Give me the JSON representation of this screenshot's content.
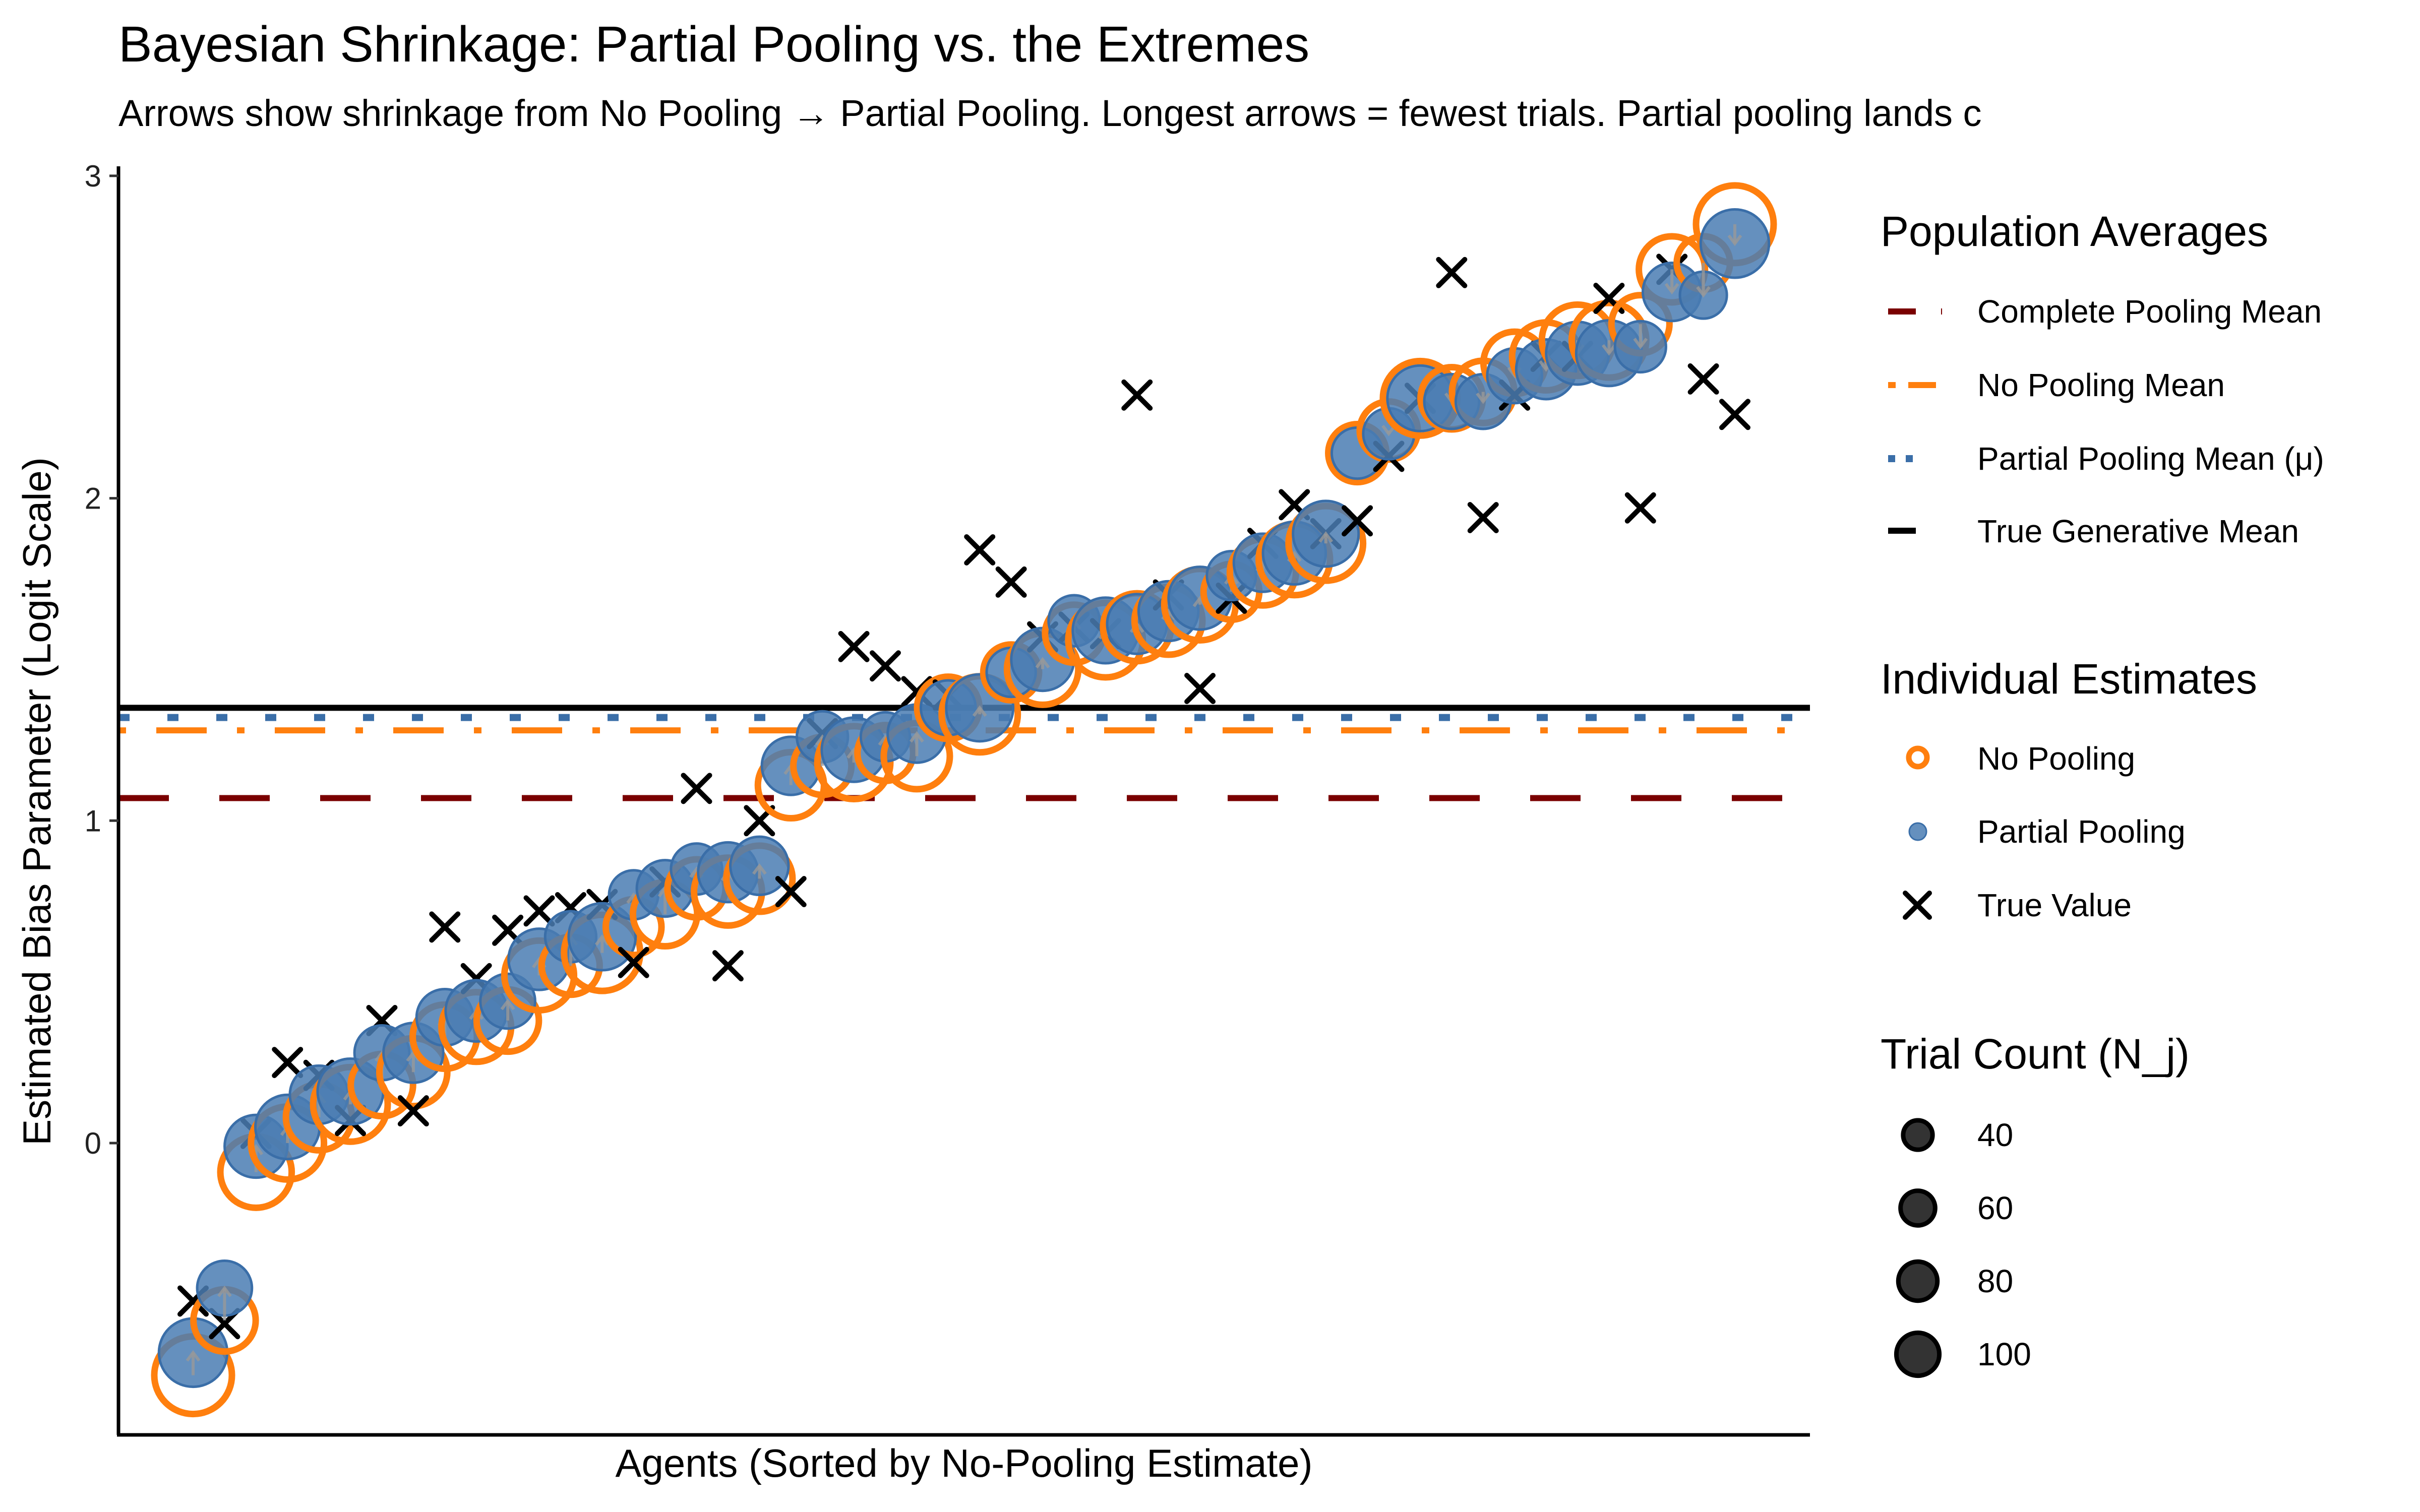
{
  "chart_data": {
    "type": "scatter",
    "title": "Bayesian Shrinkage: Partial Pooling vs. the Extremes",
    "subtitle": "Arrows show shrinkage from No Pooling → Partial Pooling. Longest arrows = fewest trials. Partial pooling lands c",
    "xlabel": "Agents (Sorted by No-Pooling Estimate)",
    "ylabel": "Estimated Bias Parameter (Logit Scale)",
    "ylim": [
      -0.9,
      3.0
    ],
    "yticks": [
      0,
      1,
      2,
      3
    ],
    "ytick_labels": [
      "0",
      "1",
      "2",
      "3"
    ],
    "xticks": [],
    "grid": false,
    "colors": {
      "no_pooling": "#FF7F0E",
      "partial_pooling": "#4A7DB3",
      "true_value": "#000000",
      "complete_pooling_mean": "#7A0000",
      "no_pooling_mean": "#FF7F0E",
      "partial_pooling_mean": "#3A6EA8",
      "true_generative_mean": "#000000",
      "arrow": "#999999"
    },
    "reference_lines": [
      {
        "name": "Complete Pooling Mean",
        "y": 1.07,
        "style": "dashed"
      },
      {
        "name": "No Pooling Mean",
        "y": 1.28,
        "style": "dotdash"
      },
      {
        "name": "Partial Pooling Mean (μ)",
        "y": 1.32,
        "style": "dotted"
      },
      {
        "name": "True Generative Mean",
        "y": 1.35,
        "style": "solid"
      }
    ],
    "agents": [
      {
        "rank": 1,
        "no_pooling": -0.72,
        "partial_pooling": -0.65,
        "true_value": -0.49,
        "n_trials": 100
      },
      {
        "rank": 2,
        "no_pooling": -0.55,
        "partial_pooling": -0.45,
        "true_value": -0.56,
        "n_trials": 55
      },
      {
        "rank": 3,
        "no_pooling": -0.09,
        "partial_pooling": -0.01,
        "true_value": 0.03,
        "n_trials": 80
      },
      {
        "rank": 4,
        "no_pooling": 0.0,
        "partial_pooling": 0.05,
        "true_value": 0.25,
        "n_trials": 85
      },
      {
        "rank": 5,
        "no_pooling": 0.08,
        "partial_pooling": 0.15,
        "true_value": 0.21,
        "n_trials": 65
      },
      {
        "rank": 6,
        "no_pooling": 0.12,
        "partial_pooling": 0.16,
        "true_value": 0.07,
        "n_trials": 90
      },
      {
        "rank": 7,
        "no_pooling": 0.18,
        "partial_pooling": 0.28,
        "true_value": 0.38,
        "n_trials": 55
      },
      {
        "rank": 8,
        "no_pooling": 0.22,
        "partial_pooling": 0.28,
        "true_value": 0.1,
        "n_trials": 70
      },
      {
        "rank": 9,
        "no_pooling": 0.33,
        "partial_pooling": 0.39,
        "true_value": 0.67,
        "n_trials": 60
      },
      {
        "rank": 10,
        "no_pooling": 0.36,
        "partial_pooling": 0.41,
        "true_value": 0.51,
        "n_trials": 75
      },
      {
        "rank": 11,
        "no_pooling": 0.38,
        "partial_pooling": 0.44,
        "true_value": 0.66,
        "n_trials": 55
      },
      {
        "rank": 12,
        "no_pooling": 0.52,
        "partial_pooling": 0.57,
        "true_value": 0.72,
        "n_trials": 75
      },
      {
        "rank": 13,
        "no_pooling": 0.55,
        "partial_pooling": 0.64,
        "true_value": 0.73,
        "n_trials": 45
      },
      {
        "rank": 14,
        "no_pooling": 0.59,
        "partial_pooling": 0.64,
        "true_value": 0.74,
        "n_trials": 95
      },
      {
        "rank": 15,
        "no_pooling": 0.67,
        "partial_pooling": 0.77,
        "true_value": 0.56,
        "n_trials": 40
      },
      {
        "rank": 16,
        "no_pooling": 0.71,
        "partial_pooling": 0.79,
        "true_value": 0.81,
        "n_trials": 60
      },
      {
        "rank": 17,
        "no_pooling": 0.79,
        "partial_pooling": 0.85,
        "true_value": 1.1,
        "n_trials": 45
      },
      {
        "rank": 18,
        "no_pooling": 0.78,
        "partial_pooling": 0.84,
        "true_value": 0.55,
        "n_trials": 70
      },
      {
        "rank": 19,
        "no_pooling": 0.82,
        "partial_pooling": 0.86,
        "true_value": 1.0,
        "n_trials": 65
      },
      {
        "rank": 20,
        "no_pooling": 1.11,
        "partial_pooling": 1.17,
        "true_value": 0.78,
        "n_trials": 65
      },
      {
        "rank": 21,
        "no_pooling": 1.17,
        "partial_pooling": 1.26,
        "true_value": 1.27,
        "n_trials": 45
      },
      {
        "rank": 22,
        "no_pooling": 1.18,
        "partial_pooling": 1.22,
        "true_value": 1.54,
        "n_trials": 85
      },
      {
        "rank": 23,
        "no_pooling": 1.21,
        "partial_pooling": 1.26,
        "true_value": 1.48,
        "n_trials": 40
      },
      {
        "rank": 24,
        "no_pooling": 1.2,
        "partial_pooling": 1.27,
        "true_value": 1.4,
        "n_trials": 65
      },
      {
        "rank": 25,
        "no_pooling": 1.35,
        "partial_pooling": 1.35,
        "true_value": 1.39,
        "n_trials": 55
      },
      {
        "rank": 26,
        "no_pooling": 1.33,
        "partial_pooling": 1.35,
        "true_value": 1.84,
        "n_trials": 95
      },
      {
        "rank": 27,
        "no_pooling": 1.46,
        "partial_pooling": 1.46,
        "true_value": 1.74,
        "n_trials": 40
      },
      {
        "rank": 28,
        "no_pooling": 1.47,
        "partial_pooling": 1.5,
        "true_value": 1.57,
        "n_trials": 80
      },
      {
        "rank": 29,
        "no_pooling": 1.58,
        "partial_pooling": 1.62,
        "true_value": 1.6,
        "n_trials": 45
      },
      {
        "rank": 30,
        "no_pooling": 1.56,
        "partial_pooling": 1.59,
        "true_value": 1.58,
        "n_trials": 90
      },
      {
        "rank": 31,
        "no_pooling": 1.6,
        "partial_pooling": 1.61,
        "true_value": 2.32,
        "n_trials": 70
      },
      {
        "rank": 32,
        "no_pooling": 1.62,
        "partial_pooling": 1.65,
        "true_value": 1.7,
        "n_trials": 70
      },
      {
        "rank": 33,
        "no_pooling": 1.67,
        "partial_pooling": 1.69,
        "true_value": 1.41,
        "n_trials": 80
      },
      {
        "rank": 34,
        "no_pooling": 1.71,
        "partial_pooling": 1.76,
        "true_value": 1.69,
        "n_trials": 40
      },
      {
        "rank": 35,
        "no_pooling": 1.77,
        "partial_pooling": 1.8,
        "true_value": 1.86,
        "n_trials": 65
      },
      {
        "rank": 36,
        "no_pooling": 1.81,
        "partial_pooling": 1.83,
        "true_value": 1.98,
        "n_trials": 80
      },
      {
        "rank": 37,
        "no_pooling": 1.86,
        "partial_pooling": 1.89,
        "true_value": 1.89,
        "n_trials": 90
      },
      {
        "rank": 38,
        "no_pooling": 2.14,
        "partial_pooling": 2.14,
        "true_value": 1.93,
        "n_trials": 45
      },
      {
        "rank": 39,
        "no_pooling": 2.21,
        "partial_pooling": 2.2,
        "true_value": 2.13,
        "n_trials": 45
      },
      {
        "rank": 40,
        "no_pooling": 2.31,
        "partial_pooling": 2.31,
        "true_value": 2.31,
        "n_trials": 90
      },
      {
        "rank": 41,
        "no_pooling": 2.31,
        "partial_pooling": 2.3,
        "true_value": 2.7,
        "n_trials": 55
      },
      {
        "rank": 42,
        "no_pooling": 2.33,
        "partial_pooling": 2.3,
        "true_value": 1.94,
        "n_trials": 55
      },
      {
        "rank": 43,
        "no_pooling": 2.42,
        "partial_pooling": 2.38,
        "true_value": 2.32,
        "n_trials": 55
      },
      {
        "rank": 44,
        "no_pooling": 2.44,
        "partial_pooling": 2.4,
        "true_value": 2.44,
        "n_trials": 70
      },
      {
        "rank": 45,
        "no_pooling": 2.49,
        "partial_pooling": 2.45,
        "true_value": 2.44,
        "n_trials": 80
      },
      {
        "rank": 46,
        "no_pooling": 2.49,
        "partial_pooling": 2.45,
        "true_value": 2.62,
        "n_trials": 90
      },
      {
        "rank": 47,
        "no_pooling": 2.54,
        "partial_pooling": 2.47,
        "true_value": 1.97,
        "n_trials": 45
      },
      {
        "rank": 48,
        "no_pooling": 2.71,
        "partial_pooling": 2.64,
        "true_value": 2.71,
        "n_trials": 65
      },
      {
        "rank": 49,
        "no_pooling": 2.73,
        "partial_pooling": 2.63,
        "true_value": 2.37,
        "n_trials": 35
      },
      {
        "rank": 50,
        "no_pooling": 2.85,
        "partial_pooling": 2.79,
        "true_value": 2.26,
        "n_trials": 100
      }
    ],
    "legends": [
      {
        "title": "Population Averages",
        "placement": "right-top",
        "entries": [
          {
            "label": "Complete Pooling Mean",
            "style": "dashed",
            "color_key": "complete_pooling_mean"
          },
          {
            "label": "No Pooling Mean",
            "style": "dotdash",
            "color_key": "no_pooling_mean"
          },
          {
            "label": "Partial Pooling Mean (μ)",
            "style": "dotted",
            "color_key": "partial_pooling_mean"
          },
          {
            "label": "True Generative Mean",
            "style": "solid",
            "color_key": "true_generative_mean"
          }
        ]
      },
      {
        "title": "Individual Estimates",
        "placement": "right-middle",
        "entries": [
          {
            "label": "No Pooling",
            "marker": "open-circle",
            "color_key": "no_pooling"
          },
          {
            "label": "Partial Pooling",
            "marker": "filled-circle",
            "color_key": "partial_pooling"
          },
          {
            "label": "True Value",
            "marker": "cross",
            "color_key": "true_value"
          }
        ]
      },
      {
        "title": "Trial Count (N_j)",
        "placement": "right-bottom",
        "entries": [
          {
            "label": "40",
            "value": 40
          },
          {
            "label": "60",
            "value": 60
          },
          {
            "label": "80",
            "value": 80
          },
          {
            "label": "100",
            "value": 100
          }
        ]
      }
    ]
  }
}
